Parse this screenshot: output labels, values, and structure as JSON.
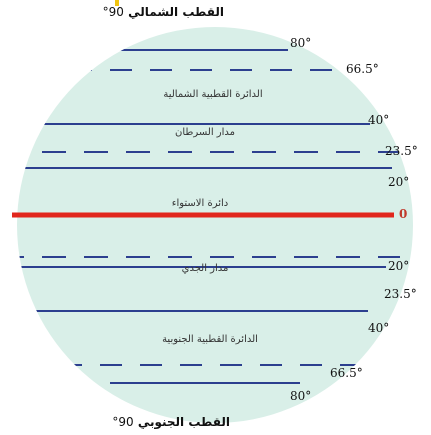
{
  "poles": {
    "north": {
      "label": "القطب الشمالي",
      "degree": "90°"
    },
    "south": {
      "label": "القطب الجنوبي",
      "degree": "90°"
    }
  },
  "parallels": {
    "n80": "80°",
    "n66": "66.5°",
    "n40": "40°",
    "n23": "23.5°",
    "n20": "20°",
    "eq": "0",
    "s20": "20°",
    "s23": "23.5°",
    "s40": "40°",
    "s66": "66.5°",
    "s80": "80°"
  },
  "zones": {
    "arctic_circle": "الدائرة القطبية الشمالية",
    "tropic_cancer": "مدار السرطان",
    "equator": "دائرة الاستواء",
    "tropic_capricorn": "مدار الجدي",
    "antarctic_circle": "الدائرة القطبية الجنوبية"
  },
  "colors": {
    "globe": "#d9efe8",
    "latitude_line": "#2c3f8f",
    "equator_line": "#e1261c",
    "pole_marker": "#f1c40f"
  }
}
